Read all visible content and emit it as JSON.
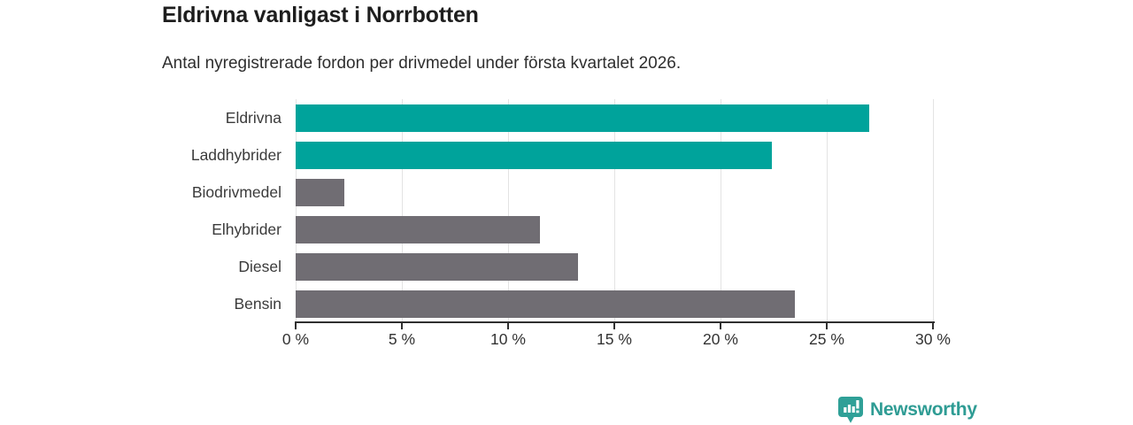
{
  "header": {
    "title": "Eldrivna vanligast i Norrbotten",
    "subtitle": "Antal nyregistrerade fordon per drivmedel under första kvartalet 2026."
  },
  "chart_data": {
    "type": "bar",
    "orientation": "horizontal",
    "title": "Eldrivna vanligast i Norrbotten",
    "subtitle": "Antal nyregistrerade fordon per drivmedel under första kvartalet 2026.",
    "categories": [
      "Eldrivna",
      "Laddhybrider",
      "Biodrivmedel",
      "Elhybrider",
      "Diesel",
      "Bensin"
    ],
    "values": [
      27.0,
      22.4,
      2.3,
      11.5,
      13.3,
      23.5
    ],
    "unit": "%",
    "xlim": [
      0,
      30
    ],
    "x_tick_values": [
      0,
      5,
      10,
      15,
      20,
      25,
      30
    ],
    "x_tick_labels": [
      "0 %",
      "5 %",
      "10 %",
      "15 %",
      "20 %",
      "25 %",
      "30 %"
    ],
    "bar_colors": [
      "#00A39B",
      "#00A39B",
      "#706D73",
      "#706D73",
      "#706D73",
      "#706D73"
    ],
    "highlight_color": "#00A39B",
    "default_color": "#706D73",
    "gridline_color": "#E3E3E3",
    "axis_color": "#2F2F2F",
    "grid": "vertical-gridlines-on",
    "legend": "none"
  },
  "footer": {
    "brand": "Newsworthy",
    "logo_icon": "bar-chart-badge-icon",
    "brand_color": "#2F9C94",
    "badge_color": "#2FA097"
  }
}
